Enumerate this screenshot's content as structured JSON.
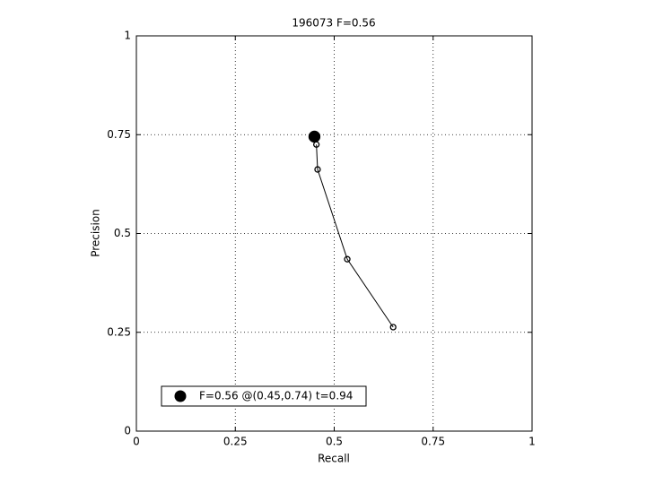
{
  "chart_data": {
    "type": "line",
    "title": "196073 F=0.56",
    "xlabel": "Recall",
    "ylabel": "Precision",
    "xlim": [
      0,
      1
    ],
    "ylim": [
      0,
      1
    ],
    "xticks": [
      0,
      0.25,
      0.5,
      0.75,
      1
    ],
    "yticks": [
      0,
      0.25,
      0.5,
      0.75,
      1
    ],
    "grid": true,
    "legend_position": "lower left",
    "series": [
      {
        "color": "#000000",
        "marker": "open-circle",
        "x": [
          0.455,
          0.458,
          0.533,
          0.649
        ],
        "values": [
          0.725,
          0.662,
          0.435,
          0.263
        ]
      },
      {
        "name": "F=0.56 @(0.45,0.74) t=0.94",
        "color": "#000000",
        "marker": "filled-circle",
        "x": [
          0.45
        ],
        "values": [
          0.745
        ]
      }
    ]
  }
}
